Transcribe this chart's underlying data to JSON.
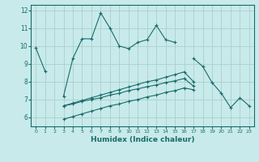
{
  "xlabel": "Humidex (Indice chaleur)",
  "bg_color": "#c8eaea",
  "grid_color": "#aacfcf",
  "line_color": "#1a6b6b",
  "xlim": [
    -0.5,
    23.5
  ],
  "ylim": [
    5.5,
    12.3
  ],
  "yticks": [
    6,
    7,
    8,
    9,
    10,
    11,
    12
  ],
  "xticks": [
    0,
    1,
    2,
    3,
    4,
    5,
    6,
    7,
    8,
    9,
    10,
    11,
    12,
    13,
    14,
    15,
    16,
    17,
    18,
    19,
    20,
    21,
    22,
    23
  ],
  "series": [
    [
      9.9,
      8.6,
      null,
      7.2,
      9.3,
      10.4,
      10.4,
      11.85,
      11.0,
      10.0,
      9.85,
      10.2,
      10.35,
      11.15,
      10.35,
      10.2,
      null,
      9.3,
      8.85,
      7.95,
      7.35,
      6.55,
      7.1,
      6.65
    ],
    [
      null,
      null,
      null,
      6.65,
      6.8,
      6.95,
      7.1,
      7.25,
      7.4,
      7.55,
      7.7,
      7.85,
      8.0,
      8.1,
      8.25,
      8.4,
      8.55,
      8.0,
      null,
      null,
      null,
      null,
      null,
      null
    ],
    [
      null,
      null,
      null,
      6.65,
      6.75,
      6.9,
      7.0,
      7.1,
      7.25,
      7.35,
      7.5,
      7.6,
      7.72,
      7.82,
      7.95,
      8.05,
      8.18,
      7.75,
      null,
      null,
      null,
      null,
      null,
      null
    ],
    [
      null,
      null,
      null,
      5.9,
      6.05,
      6.2,
      6.35,
      6.5,
      6.65,
      6.75,
      6.9,
      7.0,
      7.15,
      7.25,
      7.4,
      7.5,
      7.65,
      7.55,
      null,
      null,
      null,
      null,
      null,
      null
    ]
  ],
  "markersize": 2.5
}
